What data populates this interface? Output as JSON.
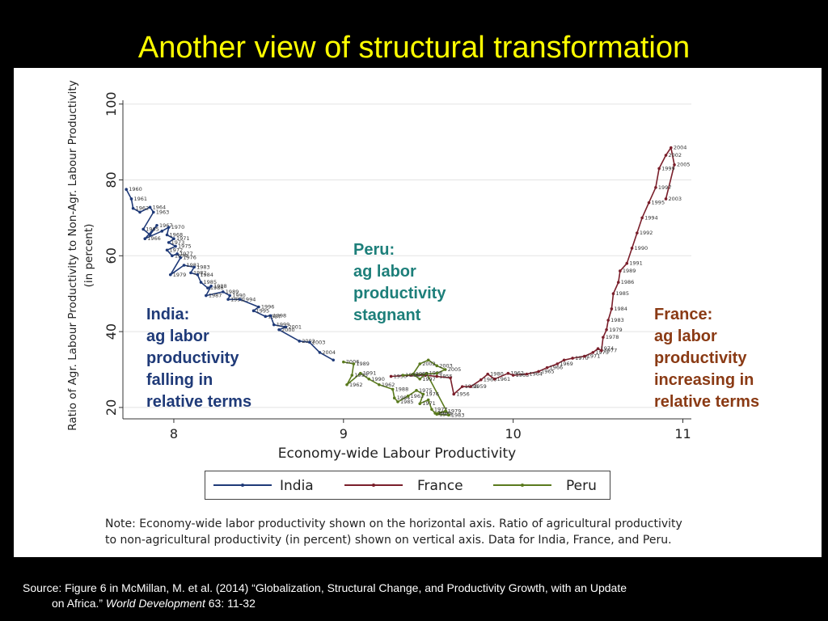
{
  "slide_title": "Another view of structural transformation",
  "annotations": {
    "india": {
      "lines": [
        "India:",
        "ag labor",
        "productivity",
        "falling in",
        "relative terms"
      ],
      "color": "#1f3a78"
    },
    "peru": {
      "lines": [
        "Peru:",
        "ag labor",
        "productivity",
        "stagnant"
      ],
      "color": "#1d7f7a"
    },
    "france": {
      "lines": [
        "France:",
        "ag labor",
        "productivity",
        "increasing in",
        "relative terms"
      ],
      "color": "#8a3a14"
    }
  },
  "note": {
    "line1": "Note: Economy-wide labor productivity shown on the horizontal axis. Ratio of agricultural productivity",
    "line2": "to non-agricultural productivity (in percent) shown on vertical axis. Data for India, France, and Peru."
  },
  "source": {
    "prefix": "Source:  Figure 6 in McMillan, M. et al. (2014) “Globalization, Structural Change, and Productivity Growth, with an Update",
    "line2_start": "on Africa.” ",
    "journal": "World Development",
    "line2_end": " 63: 11-32"
  },
  "chart_data": {
    "type": "line",
    "xlabel": "Economy-wide Labour Productivity",
    "ylabel": "Ratio of Agr. Labour Productivity to Non-Agr. Labour Productivity",
    "ylabel2": "(in percent)",
    "xlim": [
      7.7,
      11.05
    ],
    "ylim": [
      17,
      101
    ],
    "xticks": [
      "8",
      "9",
      "10",
      "11"
    ],
    "yticks": [
      "20",
      "40",
      "60",
      "80",
      "100"
    ],
    "grid": "horizontal",
    "legend": "bottom",
    "series": [
      {
        "name": "India",
        "color": "#1f3a78",
        "points": [
          {
            "x": 7.72,
            "y": 77.5,
            "label": "1960"
          },
          {
            "x": 7.75,
            "y": 75,
            "label": "1961"
          },
          {
            "x": 7.76,
            "y": 72.5,
            "label": "1962"
          },
          {
            "x": 7.8,
            "y": 71.5,
            "label": ""
          },
          {
            "x": 7.86,
            "y": 72.8,
            "label": "1964"
          },
          {
            "x": 7.88,
            "y": 71.5,
            "label": "1963"
          },
          {
            "x": 7.82,
            "y": 67,
            "label": "1965"
          },
          {
            "x": 7.86,
            "y": 65.5,
            "label": ""
          },
          {
            "x": 7.9,
            "y": 68,
            "label": "1967"
          },
          {
            "x": 7.83,
            "y": 64.5,
            "label": "1966"
          },
          {
            "x": 7.93,
            "y": 66.5,
            "label": ""
          },
          {
            "x": 7.97,
            "y": 67.5,
            "label": "1970"
          },
          {
            "x": 7.96,
            "y": 65.5,
            "label": "1968"
          },
          {
            "x": 8.0,
            "y": 64.5,
            "label": "1971"
          },
          {
            "x": 7.97,
            "y": 63.5,
            "label": "1973"
          },
          {
            "x": 8.01,
            "y": 62.5,
            "label": "1975"
          },
          {
            "x": 7.96,
            "y": 61.5,
            "label": "1972"
          },
          {
            "x": 7.99,
            "y": 60,
            "label": "1974"
          },
          {
            "x": 8.02,
            "y": 60.5,
            "label": "1977"
          },
          {
            "x": 8.04,
            "y": 59.5,
            "label": "1976"
          },
          {
            "x": 7.98,
            "y": 55,
            "label": "1979"
          },
          {
            "x": 8.06,
            "y": 57.5,
            "label": "1981"
          },
          {
            "x": 8.12,
            "y": 57,
            "label": "1983"
          },
          {
            "x": 8.1,
            "y": 55.5,
            "label": "1982"
          },
          {
            "x": 8.14,
            "y": 55,
            "label": "1984"
          },
          {
            "x": 8.16,
            "y": 53,
            "label": "1985"
          },
          {
            "x": 8.2,
            "y": 51.5,
            "label": "1986"
          },
          {
            "x": 8.22,
            "y": 52,
            "label": "1988"
          },
          {
            "x": 8.19,
            "y": 49.5,
            "label": "1987"
          },
          {
            "x": 8.29,
            "y": 50.5,
            "label": "1989"
          },
          {
            "x": 8.33,
            "y": 49.5,
            "label": "1990"
          },
          {
            "x": 8.32,
            "y": 48.5,
            "label": "1991"
          },
          {
            "x": 8.39,
            "y": 48.5,
            "label": "1994"
          },
          {
            "x": 8.5,
            "y": 46.5,
            "label": "1996"
          },
          {
            "x": 8.47,
            "y": 45.5,
            "label": "1995"
          },
          {
            "x": 8.54,
            "y": 44,
            "label": "1997"
          },
          {
            "x": 8.57,
            "y": 44.2,
            "label": "1998"
          },
          {
            "x": 8.59,
            "y": 41.8,
            "label": "1999"
          },
          {
            "x": 8.66,
            "y": 41.2,
            "label": "2001"
          },
          {
            "x": 8.62,
            "y": 40.5,
            "label": "2000"
          },
          {
            "x": 8.74,
            "y": 37.5,
            "label": "2002"
          },
          {
            "x": 8.8,
            "y": 37.2,
            "label": "2003"
          },
          {
            "x": 8.86,
            "y": 34.5,
            "label": "2004"
          },
          {
            "x": 8.94,
            "y": 32.5,
            "label": ""
          }
        ]
      },
      {
        "name": "France",
        "color": "#7a1f2b",
        "points": [
          {
            "x": 9.28,
            "y": 28.2,
            "label": "1950"
          },
          {
            "x": 9.4,
            "y": 28.5,
            "label": "1951"
          },
          {
            "x": 9.48,
            "y": 28.5,
            "label": ""
          },
          {
            "x": 9.55,
            "y": 28.2,
            "label": "1955"
          },
          {
            "x": 9.63,
            "y": 27.8,
            "label": ""
          },
          {
            "x": 9.65,
            "y": 23.5,
            "label": "1956"
          },
          {
            "x": 9.7,
            "y": 25.5,
            "label": "1958"
          },
          {
            "x": 9.75,
            "y": 25.5,
            "label": "1959"
          },
          {
            "x": 9.81,
            "y": 27.3,
            "label": "1960"
          },
          {
            "x": 9.85,
            "y": 28.8,
            "label": "1980"
          },
          {
            "x": 9.89,
            "y": 27.5,
            "label": "1961"
          },
          {
            "x": 9.97,
            "y": 29,
            "label": "1962"
          },
          {
            "x": 10.0,
            "y": 28.5,
            "label": "1963"
          },
          {
            "x": 10.08,
            "y": 28.8,
            "label": "1964"
          },
          {
            "x": 10.15,
            "y": 29.5,
            "label": "1965"
          },
          {
            "x": 10.2,
            "y": 30.5,
            "label": "1966"
          },
          {
            "x": 10.26,
            "y": 31.5,
            "label": "1969"
          },
          {
            "x": 10.3,
            "y": 32.5,
            "label": ""
          },
          {
            "x": 10.35,
            "y": 33,
            "label": "1970"
          },
          {
            "x": 10.42,
            "y": 33.5,
            "label": "1971"
          },
          {
            "x": 10.47,
            "y": 34.5,
            "label": "1973"
          },
          {
            "x": 10.5,
            "y": 35.5,
            "label": "1974"
          },
          {
            "x": 10.52,
            "y": 35,
            "label": "1977"
          },
          {
            "x": 10.53,
            "y": 38.5,
            "label": "1978"
          },
          {
            "x": 10.55,
            "y": 40.5,
            "label": "1979"
          },
          {
            "x": 10.56,
            "y": 43,
            "label": "1983"
          },
          {
            "x": 10.58,
            "y": 46,
            "label": "1984"
          },
          {
            "x": 10.59,
            "y": 50,
            "label": "1985"
          },
          {
            "x": 10.62,
            "y": 53,
            "label": "1986"
          },
          {
            "x": 10.63,
            "y": 56,
            "label": "1989"
          },
          {
            "x": 10.67,
            "y": 58,
            "label": "1991"
          },
          {
            "x": 10.7,
            "y": 62,
            "label": "1990"
          },
          {
            "x": 10.73,
            "y": 66,
            "label": "1992"
          },
          {
            "x": 10.76,
            "y": 70,
            "label": "1994"
          },
          {
            "x": 10.8,
            "y": 74,
            "label": "1995"
          },
          {
            "x": 10.84,
            "y": 78,
            "label": "1997"
          },
          {
            "x": 10.86,
            "y": 83,
            "label": "1999"
          },
          {
            "x": 10.9,
            "y": 86.5,
            "label": "2002"
          },
          {
            "x": 10.93,
            "y": 88.5,
            "label": "2004"
          },
          {
            "x": 10.95,
            "y": 84,
            "label": "2005"
          },
          {
            "x": 10.9,
            "y": 75,
            "label": "2003"
          }
        ]
      },
      {
        "name": "Peru",
        "color": "#5a7a1e",
        "points": [
          {
            "x": 9.0,
            "y": 32,
            "label": "2006"
          },
          {
            "x": 9.06,
            "y": 31.5,
            "label": "1989"
          },
          {
            "x": 9.05,
            "y": 28.5,
            "label": "1993"
          },
          {
            "x": 9.02,
            "y": 26,
            "label": "1962"
          },
          {
            "x": 9.1,
            "y": 29,
            "label": "1991"
          },
          {
            "x": 9.15,
            "y": 27.5,
            "label": "1990"
          },
          {
            "x": 9.21,
            "y": 26,
            "label": "1962"
          },
          {
            "x": 9.29,
            "y": 24.8,
            "label": "1988"
          },
          {
            "x": 9.3,
            "y": 22.5,
            "label": "1984"
          },
          {
            "x": 9.32,
            "y": 21.5,
            "label": "1985"
          },
          {
            "x": 9.38,
            "y": 23,
            "label": "1963"
          },
          {
            "x": 9.43,
            "y": 24.5,
            "label": "1975"
          },
          {
            "x": 9.47,
            "y": 23.5,
            "label": "1976"
          },
          {
            "x": 9.45,
            "y": 21,
            "label": "1971"
          },
          {
            "x": 9.5,
            "y": 22,
            "label": ""
          },
          {
            "x": 9.52,
            "y": 19.5,
            "label": "1977"
          },
          {
            "x": 9.54,
            "y": 18.5,
            "label": "1980"
          },
          {
            "x": 9.6,
            "y": 19,
            "label": "1979"
          },
          {
            "x": 9.55,
            "y": 18.2,
            "label": "1978"
          },
          {
            "x": 9.62,
            "y": 18,
            "label": "1983"
          },
          {
            "x": 9.49,
            "y": 29,
            "label": "1998"
          },
          {
            "x": 9.45,
            "y": 27.5,
            "label": "1997"
          },
          {
            "x": 9.41,
            "y": 28.8,
            "label": "1981"
          },
          {
            "x": 9.45,
            "y": 31.5,
            "label": "2002"
          },
          {
            "x": 9.5,
            "y": 32.5,
            "label": ""
          },
          {
            "x": 9.55,
            "y": 31,
            "label": "2003"
          },
          {
            "x": 9.6,
            "y": 30,
            "label": "2005"
          },
          {
            "x": 9.55,
            "y": 29,
            "label": ""
          },
          {
            "x": 9.35,
            "y": 28.5,
            "label": "1986"
          }
        ]
      }
    ]
  }
}
